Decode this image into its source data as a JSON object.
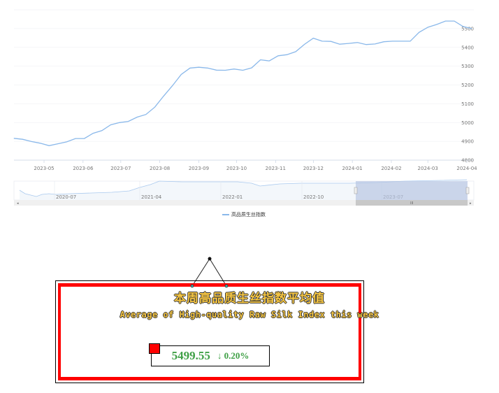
{
  "chart_data": {
    "type": "line",
    "series": [
      {
        "name": "高品质生丝指数",
        "color": "#8ab8ea",
        "x": [
          "2023-04-07",
          "2023-04-14",
          "2023-04-21",
          "2023-04-28",
          "2023-05-05",
          "2023-05-12",
          "2023-05-19",
          "2023-05-26",
          "2023-06-02",
          "2023-06-09",
          "2023-06-16",
          "2023-06-23",
          "2023-06-30",
          "2023-07-07",
          "2023-07-14",
          "2023-07-21",
          "2023-07-28",
          "2023-08-04",
          "2023-08-11",
          "2023-08-18",
          "2023-08-25",
          "2023-09-01",
          "2023-09-08",
          "2023-09-15",
          "2023-09-22",
          "2023-09-29",
          "2023-10-06",
          "2023-10-13",
          "2023-10-20",
          "2023-10-27",
          "2023-11-03",
          "2023-11-10",
          "2023-11-17",
          "2023-11-24",
          "2023-12-01",
          "2023-12-08",
          "2023-12-15",
          "2023-12-22",
          "2023-12-29",
          "2024-01-05",
          "2024-01-12",
          "2024-01-19",
          "2024-01-26",
          "2024-02-02",
          "2024-02-09",
          "2024-02-16",
          "2024-02-23",
          "2024-03-01",
          "2024-03-08",
          "2024-03-15",
          "2024-03-22",
          "2024-03-29",
          "2024-04-05"
        ],
        "values": [
          4916,
          4911,
          4899,
          4890,
          4877,
          4887,
          4897,
          4915,
          4915,
          4943,
          4957,
          4988,
          5000,
          5006,
          5029,
          5043,
          5082,
          5141,
          5196,
          5256,
          5290,
          5294,
          5290,
          5279,
          5278,
          5285,
          5278,
          5291,
          5334,
          5328,
          5355,
          5361,
          5377,
          5416,
          5449,
          5433,
          5432,
          5417,
          5421,
          5426,
          5415,
          5418,
          5430,
          5433,
          5433,
          5433,
          5480,
          5507,
          5522,
          5540,
          5540,
          5511,
          5500
        ]
      }
    ],
    "xticks": [
      "2023-05",
      "2023-06",
      "2023-07",
      "2023-08",
      "2023-09",
      "2023-10",
      "2023-11",
      "2023-12",
      "2024-01",
      "2024-02",
      "2024-03",
      "2024-04"
    ],
    "yticks": [
      4800,
      4900,
      5000,
      5100,
      5200,
      5300,
      5400,
      5500
    ],
    "ylim": [
      4800,
      5600
    ],
    "xlim": [
      "2023-04-07",
      "2024-04-05"
    ],
    "yaxis_position": "right",
    "grid": true,
    "legend": "bottom",
    "datazoom": {
      "labels": [
        "2020-07",
        "2021-04",
        "2022-01",
        "2022-10",
        "2023-07"
      ],
      "selected_range_percent": [
        75.5,
        100
      ]
    }
  },
  "panel": {
    "title_cn": "本周高品质生丝指数平均值",
    "title_en": "Average of High-quality Raw Silk Index this week",
    "value": "5499.55",
    "change_arrow": "↓",
    "change": "0.20%",
    "value_color": "#3fa046",
    "frame_color": "#ff0000"
  }
}
